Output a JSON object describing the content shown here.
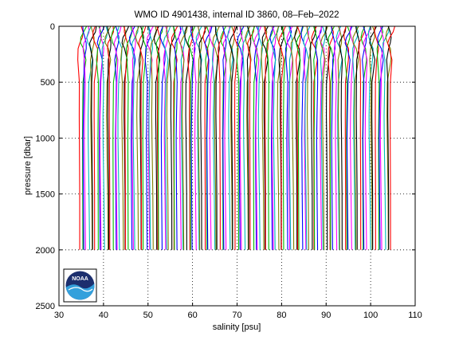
{
  "chart_data": {
    "type": "line",
    "title": "WMO ID 4901438, internal ID 3860, 08–Feb–2022",
    "xlabel": "salinity [psu]",
    "ylabel": "pressure [dbar]",
    "xlim": [
      30,
      110
    ],
    "ylim": [
      0,
      2500
    ],
    "y_reversed": true,
    "x_ticks": [
      30,
      40,
      50,
      60,
      70,
      80,
      90,
      100,
      110
    ],
    "y_ticks": [
      0,
      500,
      1000,
      1500,
      2000,
      2500
    ],
    "x_tick_labels": [
      "30",
      "40",
      "50",
      "60",
      "70",
      "80",
      "90",
      "100",
      "110"
    ],
    "y_tick_labels": [
      "0",
      "500",
      "1000",
      "1500",
      "2000",
      "2500"
    ],
    "grid": "dotted",
    "legend": "none",
    "profile_offset_psu": 0.5,
    "profile_count": 141,
    "base_salinity_psu": 34.8,
    "max_pressure_dbar": 2000,
    "series_colors": [
      "#ff0000",
      "#00bb00",
      "#0000ff",
      "#ff00ff",
      "#00bbbb",
      "#808000",
      "#000000"
    ],
    "profile_shape": [
      {
        "p": 0,
        "s": 35.0
      },
      {
        "p": 50,
        "s": 34.9
      },
      {
        "p": 100,
        "s": 34.7
      },
      {
        "p": 150,
        "s": 34.6
      },
      {
        "p": 200,
        "s": 34.75
      },
      {
        "p": 300,
        "s": 34.8
      },
      {
        "p": 500,
        "s": 34.6
      },
      {
        "p": 800,
        "s": 34.5
      },
      {
        "p": 1000,
        "s": 34.5
      },
      {
        "p": 1500,
        "s": 34.62
      },
      {
        "p": 2000,
        "s": 34.7
      }
    ]
  },
  "logo": {
    "text": "NOAA",
    "icon": "noaa-logo-icon",
    "colors": {
      "dark_blue": "#1c2f6e",
      "light_blue": "#33a0dc",
      "white": "#ffffff"
    }
  }
}
